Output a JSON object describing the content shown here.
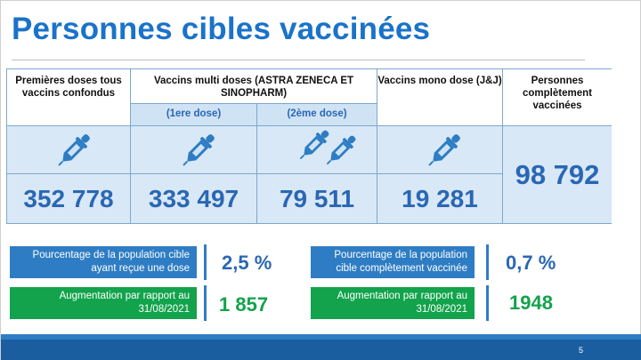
{
  "title": "Personnes cibles vaccinées",
  "table": {
    "col1_header": "Premières doses tous vaccins confondus",
    "col2_header": "Vaccins multi doses (ASTRA ZENECA ET SINOPHARM)",
    "col2a_sub": "(1ere dose)",
    "col2b_sub": "(2ème dose)",
    "col3_header": "Vaccins mono dose (J&J)",
    "col4_header": "Personnes complètement vaccinées",
    "values": {
      "premieres_doses": "352 778",
      "multi_1ere": "333 497",
      "multi_2eme": "79 511",
      "mono": "19 281",
      "completement": "98 792"
    }
  },
  "stats": {
    "pct_dose_label": "Pourcentage de la population cible ayant reçue une dose",
    "pct_dose_value": "2,5 %",
    "aug_left_label": "Augmentation par rapport au 31/08/2021",
    "aug_left_value": "1 857",
    "pct_complete_label": "Pourcentage de la population cible complètement vaccinée",
    "pct_complete_value": "0,7 %",
    "aug_right_label": "Augmentation par rapport au 31/08/2021",
    "aug_right_value": "1948"
  },
  "page_number": "5",
  "colors": {
    "primary_blue": "#2a67b4",
    "title_blue": "#1a73c8",
    "green": "#12a34c",
    "cell_blue": "#d9e8f6"
  },
  "icons": [
    "syringe-dropper-icon"
  ]
}
